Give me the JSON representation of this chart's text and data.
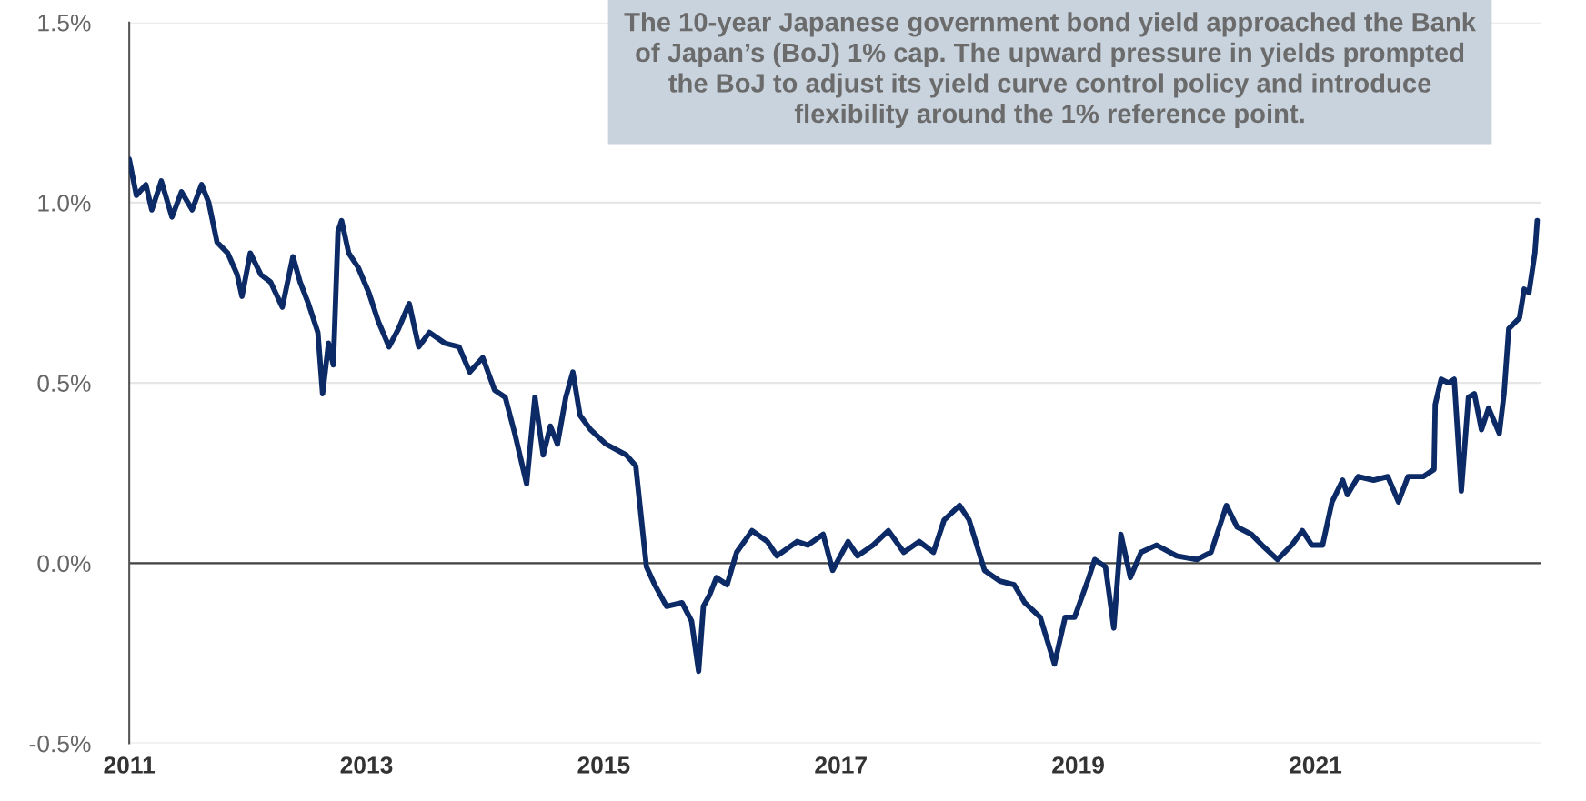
{
  "chart_data": {
    "type": "line",
    "annotations": [
      "The 10-year Japanese government bond yield approached the Bank\nof Japan’s (BoJ) 1% cap. The upward pressure in yields prompted\nthe BoJ to adjust its yield curve control policy and introduce\nflexibility around the 1% reference point."
    ],
    "series": [
      {
        "color": "#0b2a66",
        "x": [
          2011.0,
          2011.06,
          2011.14,
          2011.19,
          2011.27,
          2011.36,
          2011.44,
          2011.53,
          2011.61,
          2011.67,
          2011.74,
          2011.83,
          2011.91,
          2011.95,
          2012.02,
          2012.11,
          2012.19,
          2012.29,
          2012.38,
          2012.44,
          2012.51,
          2012.59,
          2012.63,
          2012.68,
          2012.72,
          2012.76,
          2012.79,
          2012.85,
          2012.93,
          2013.02,
          2013.1,
          2013.19,
          2013.27,
          2013.36,
          2013.44,
          2013.53,
          2013.66,
          2013.78,
          2013.87,
          2013.98,
          2014.08,
          2014.17,
          2014.25,
          2014.35,
          2014.42,
          2014.49,
          2014.55,
          2014.61,
          2014.68,
          2014.74,
          2014.8,
          2014.89,
          2015.02,
          2015.19,
          2015.27,
          2015.36,
          2015.43,
          2015.53,
          2015.66,
          2015.74,
          2015.8,
          2015.84,
          2015.89,
          2015.95,
          2016.04,
          2016.12,
          2016.25,
          2016.38,
          2016.46,
          2016.63,
          2016.72,
          2016.85,
          2016.93,
          2017.06,
          2017.14,
          2017.27,
          2017.4,
          2017.53,
          2017.66,
          2017.78,
          2017.87,
          2018.0,
          2018.08,
          2018.21,
          2018.34,
          2018.46,
          2018.55,
          2018.68,
          2018.8,
          2018.89,
          2018.97,
          2019.09,
          2019.14,
          2019.23,
          2019.3,
          2019.36,
          2019.44,
          2019.53,
          2019.66,
          2019.83,
          2020.0,
          2020.12,
          2020.25,
          2020.34,
          2020.46,
          2020.55,
          2020.68,
          2020.8,
          2020.89,
          2020.97,
          2021.06,
          2021.14,
          2021.23,
          2021.27,
          2021.36,
          2021.49,
          2021.61,
          2021.7,
          2021.78,
          2021.91,
          2022.0,
          2022.01,
          2022.06,
          2022.12,
          2022.17,
          2022.23,
          2022.29,
          2022.34,
          2022.4,
          2022.46,
          2022.55,
          2022.59,
          2022.63,
          2022.72,
          2022.76,
          2022.8,
          2022.85,
          2022.87
        ],
        "values": [
          1.12,
          1.02,
          1.05,
          0.98,
          1.06,
          0.96,
          1.03,
          0.98,
          1.05,
          1.0,
          0.89,
          0.86,
          0.8,
          0.74,
          0.86,
          0.8,
          0.78,
          0.71,
          0.85,
          0.78,
          0.72,
          0.64,
          0.47,
          0.61,
          0.55,
          0.92,
          0.95,
          0.86,
          0.82,
          0.75,
          0.67,
          0.6,
          0.65,
          0.72,
          0.6,
          0.64,
          0.61,
          0.6,
          0.53,
          0.57,
          0.48,
          0.46,
          0.36,
          0.22,
          0.46,
          0.3,
          0.38,
          0.33,
          0.46,
          0.53,
          0.41,
          0.37,
          0.33,
          0.3,
          0.27,
          -0.01,
          -0.06,
          -0.12,
          -0.11,
          -0.16,
          -0.3,
          -0.12,
          -0.09,
          -0.04,
          -0.06,
          0.03,
          0.09,
          0.06,
          0.02,
          0.06,
          0.05,
          0.08,
          -0.02,
          0.06,
          0.02,
          0.05,
          0.09,
          0.03,
          0.06,
          0.03,
          0.12,
          0.16,
          0.12,
          -0.02,
          -0.05,
          -0.06,
          -0.11,
          -0.15,
          -0.28,
          -0.15,
          -0.15,
          -0.04,
          0.01,
          -0.01,
          -0.18,
          0.08,
          -0.04,
          0.03,
          0.05,
          0.02,
          0.01,
          0.03,
          0.16,
          0.1,
          0.08,
          0.05,
          0.01,
          0.05,
          0.09,
          0.05,
          0.05,
          0.17,
          0.23,
          0.19,
          0.24,
          0.23,
          0.24,
          0.17,
          0.24,
          0.24,
          0.26,
          0.44,
          0.51,
          0.5,
          0.51,
          0.2,
          0.46,
          0.47,
          0.37,
          0.43,
          0.36,
          0.47,
          0.65,
          0.68,
          0.76,
          0.75,
          0.86,
          0.95
        ]
      }
    ],
    "xlim": [
      2011,
      2022.9
    ],
    "xticks": [
      2011,
      2013,
      2015,
      2017,
      2019,
      2021
    ],
    "ylim": [
      -0.5,
      1.5
    ],
    "yticks": [
      {
        "value": -0.5,
        "label": "-0.5%"
      },
      {
        "value": 0,
        "label": "0.0%"
      },
      {
        "value": 0.5,
        "label": "0.5%"
      },
      {
        "value": 1.0,
        "label": "1.0%"
      },
      {
        "value": 1.5,
        "label": "1.5%"
      }
    ],
    "grid": "y",
    "ref_lines": [
      {
        "axis": "y",
        "value": 0,
        "color": "#444444"
      }
    ],
    "marker": "none",
    "line_style": "solid"
  }
}
